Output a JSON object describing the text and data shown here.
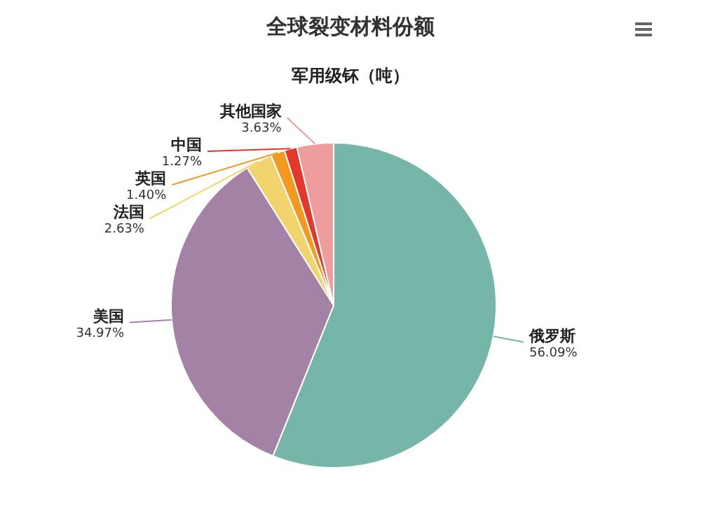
{
  "chart_data": {
    "type": "pie",
    "title": "全球裂变材料份额",
    "subtitle": "军用级钚（吨）",
    "categories": [
      "俄罗斯",
      "美国",
      "法国",
      "英国",
      "中国",
      "其他国家"
    ],
    "values": [
      56.09,
      34.97,
      2.63,
      1.4,
      1.27,
      3.63
    ],
    "value_labels": [
      "56.09%",
      "34.97%",
      "2.63%",
      "1.40%",
      "1.27%",
      "3.63%"
    ],
    "colors": [
      "#76b6a8",
      "#a382a6",
      "#f2d46e",
      "#f39a1e",
      "#e2392c",
      "#ee9c9c"
    ]
  }
}
